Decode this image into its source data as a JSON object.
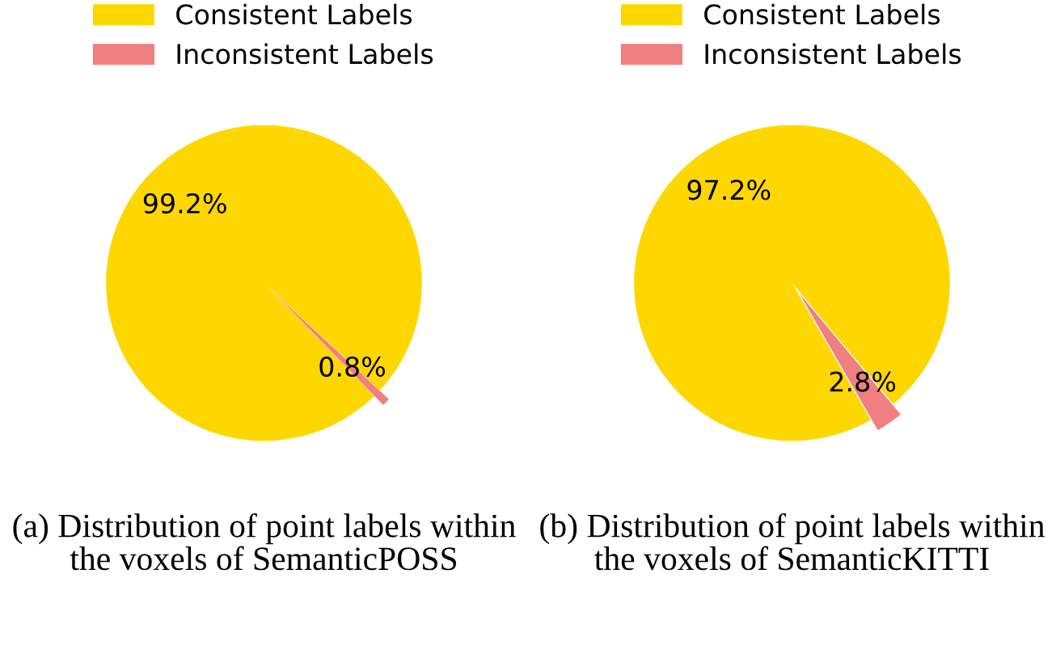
{
  "chart_data": [
    {
      "type": "pie",
      "categories": [
        "Consistent Labels",
        "Inconsistent Labels"
      ],
      "values": [
        99.2,
        0.8
      ],
      "colors": [
        "#ffd700",
        "#f08080"
      ],
      "value_labels": [
        "99.2%",
        "0.8%"
      ],
      "legend": "top",
      "annotations": [
        "(a) Distribution of point labels within the voxels of SemanticPOSS"
      ]
    },
    {
      "type": "pie",
      "categories": [
        "Consistent Labels",
        "Inconsistent Labels"
      ],
      "values": [
        97.2,
        2.8
      ],
      "colors": [
        "#ffd700",
        "#f08080"
      ],
      "value_labels": [
        "97.2%",
        "2.8%"
      ],
      "legend": "top",
      "annotations": [
        "(b) Distribution of point labels within the voxels of SemanticKITTI"
      ]
    }
  ]
}
